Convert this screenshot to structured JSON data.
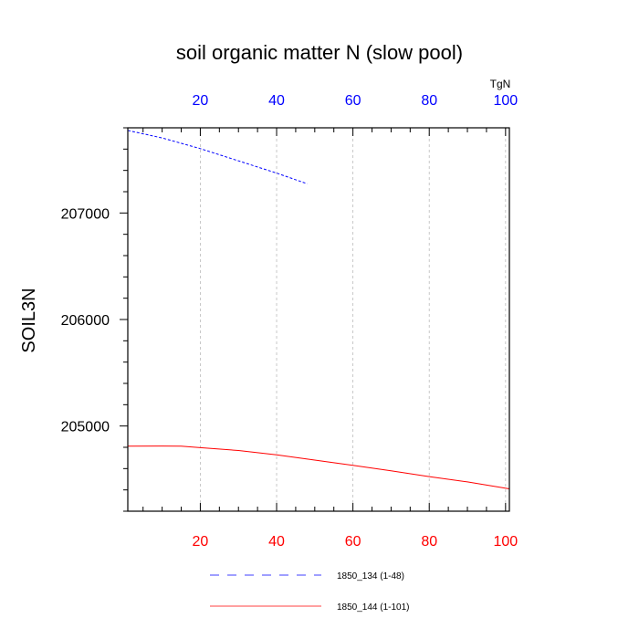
{
  "chart_data": {
    "type": "line",
    "title": "soil organic matter N (slow pool)",
    "xlabel": "",
    "ylabel": "SOIL3N",
    "top_axis_unit": "TgN",
    "xlim": [
      1,
      101
    ],
    "ylim": [
      204200,
      207800
    ],
    "x_ticks": [
      20,
      40,
      60,
      80,
      100
    ],
    "x_tick_labels": [
      "20",
      "40",
      "60",
      "80",
      "100"
    ],
    "y_ticks": [
      205000,
      206000,
      207000
    ],
    "y_tick_labels": [
      "205000",
      "206000",
      "207000"
    ],
    "grid": "vertical dashed",
    "colors": {
      "top_axis": "#0000ff",
      "bottom_axis": "#ff0000",
      "grid": "#bbbbbb"
    },
    "series": [
      {
        "name": "1850_134 (1-48)",
        "color": "#0000ff",
        "dash": "dashed",
        "x": [
          1,
          10,
          20,
          30,
          40,
          48
        ],
        "y": [
          207775,
          207705,
          207605,
          207490,
          207375,
          207275
        ]
      },
      {
        "name": "1850_144 (1-101)",
        "color": "#ff0000",
        "dash": "solid",
        "x": [
          1,
          10,
          15,
          20,
          30,
          40,
          50,
          60,
          70,
          80,
          90,
          101
        ],
        "y": [
          204810,
          204812,
          204810,
          204797,
          204770,
          204730,
          204680,
          204630,
          204580,
          204525,
          204475,
          204410
        ]
      }
    ],
    "legend": "bottom"
  }
}
